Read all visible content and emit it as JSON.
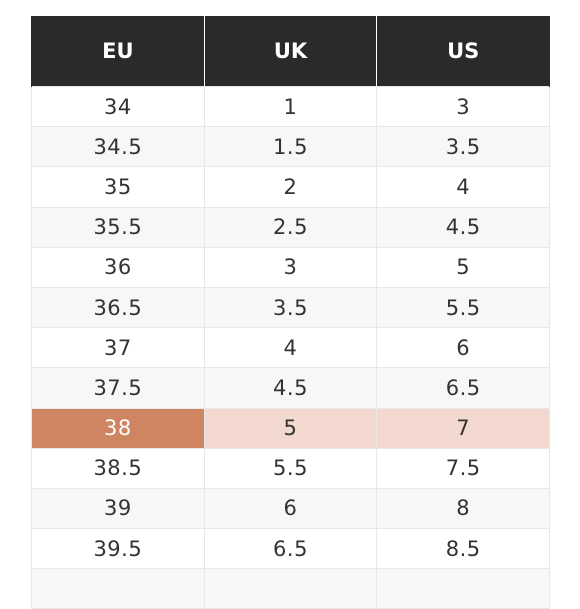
{
  "table": {
    "headers": [
      "EU",
      "UK",
      "US"
    ],
    "highlight_index": 8,
    "highlight_colors": {
      "primary": "#cf8462",
      "secondary": "#f2d8ce"
    },
    "rows": [
      [
        "34",
        "1",
        "3"
      ],
      [
        "34.5",
        "1.5",
        "3.5"
      ],
      [
        "35",
        "2",
        "4"
      ],
      [
        "35.5",
        "2.5",
        "4.5"
      ],
      [
        "36",
        "3",
        "5"
      ],
      [
        "36.5",
        "3.5",
        "5.5"
      ],
      [
        "37",
        "4",
        "6"
      ],
      [
        "37.5",
        "4.5",
        "6.5"
      ],
      [
        "38",
        "5",
        "7"
      ],
      [
        "38.5",
        "5.5",
        "7.5"
      ],
      [
        "39",
        "6",
        "8"
      ],
      [
        "39.5",
        "6.5",
        "8.5"
      ]
    ]
  }
}
